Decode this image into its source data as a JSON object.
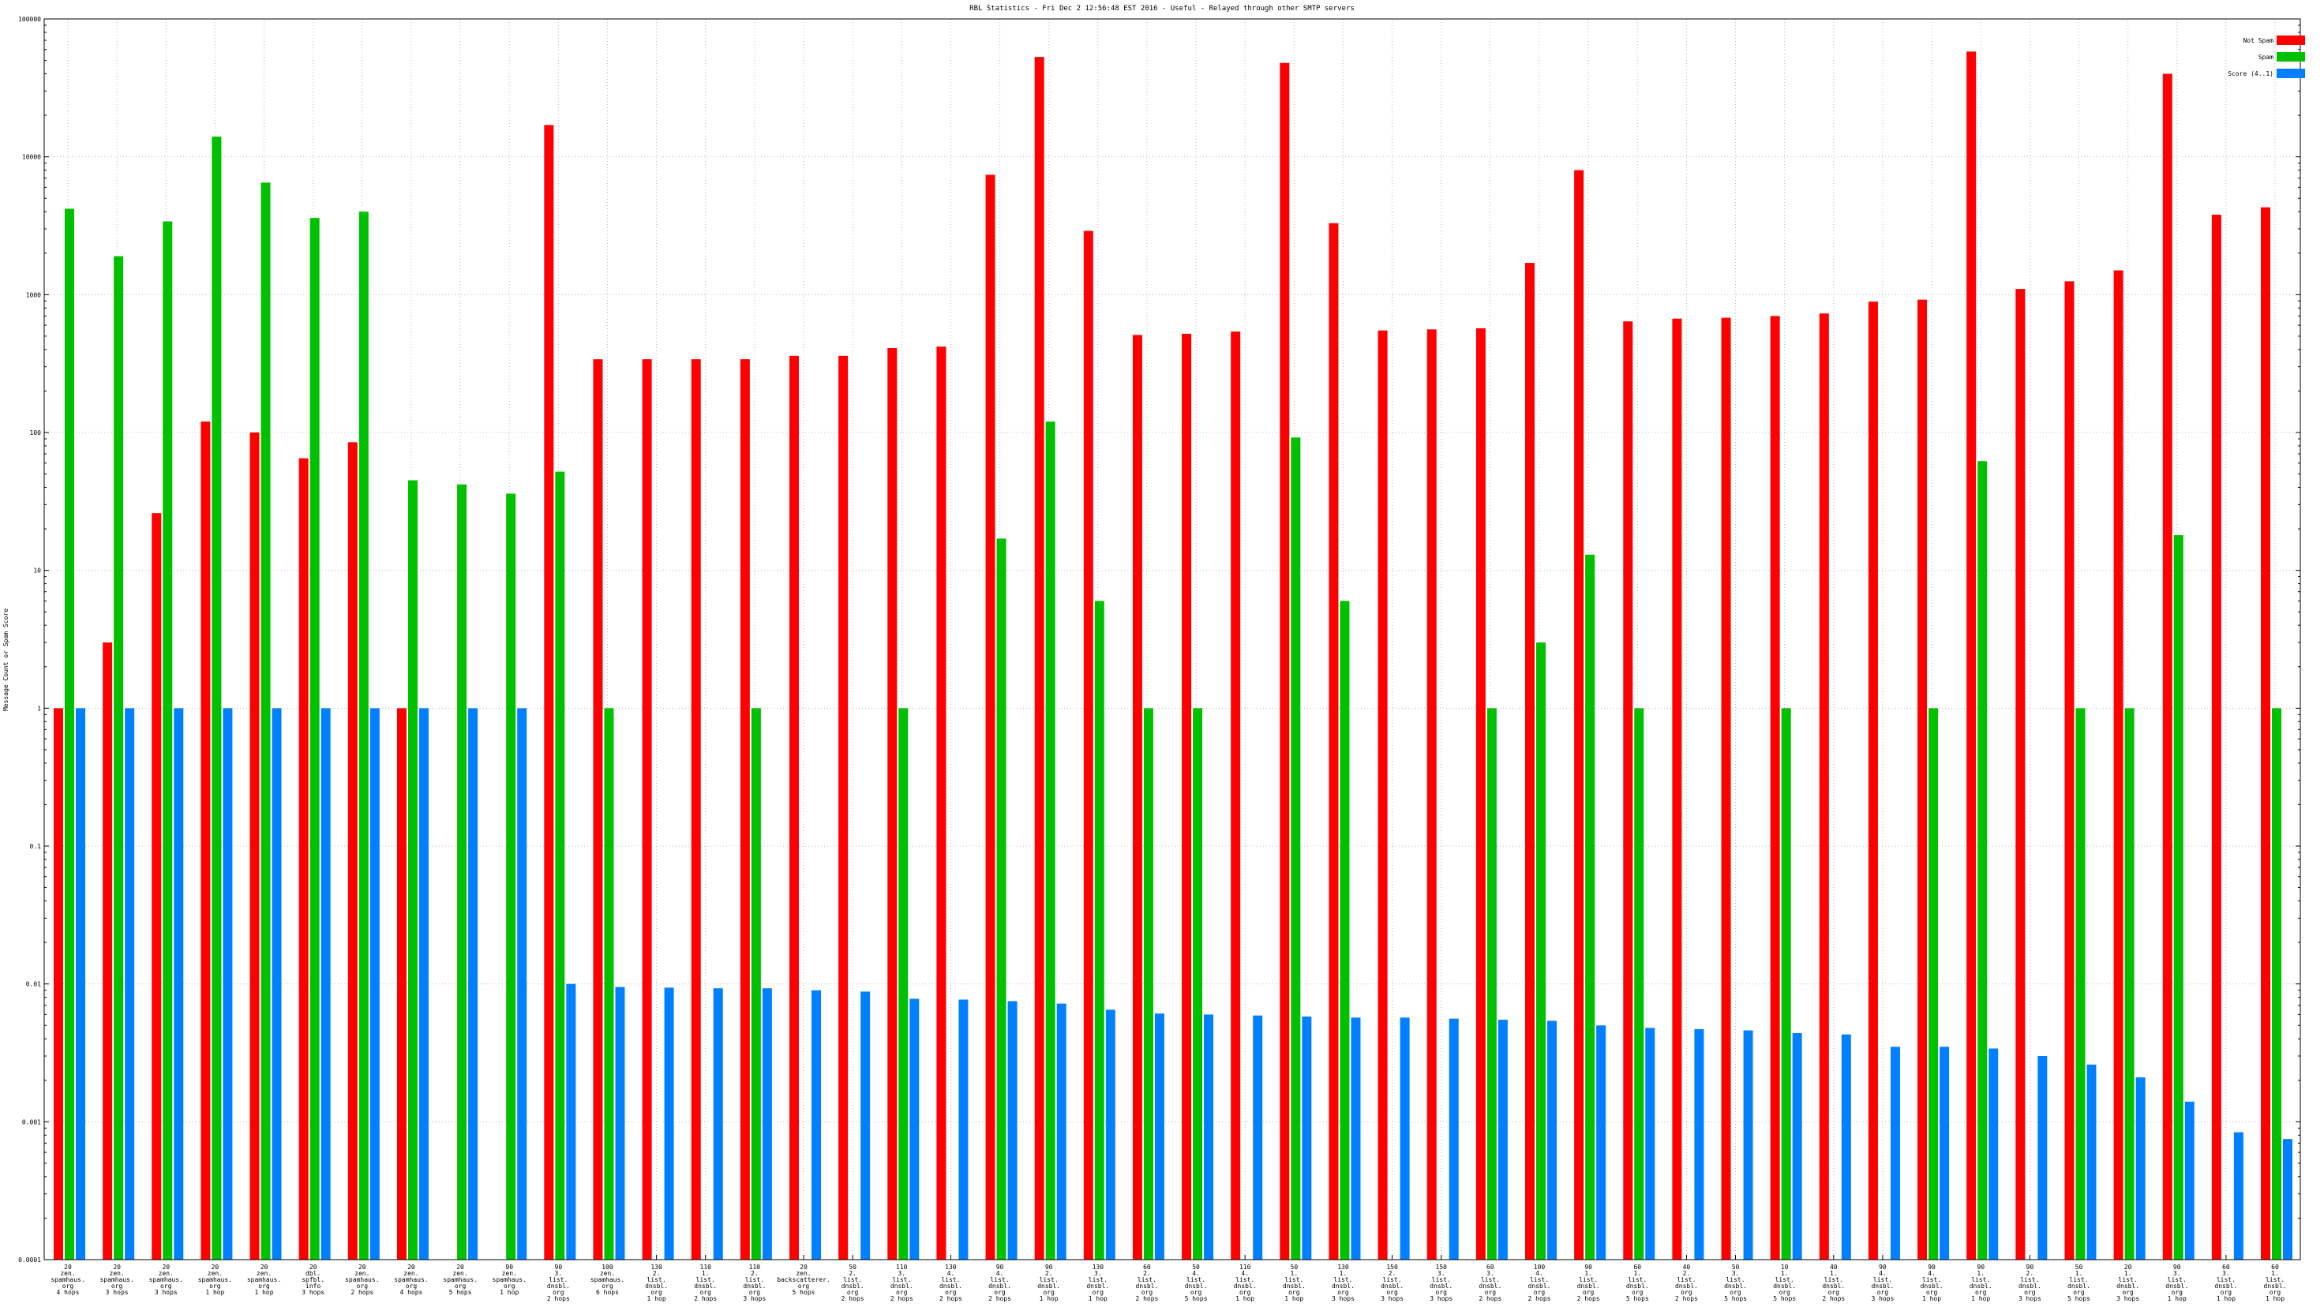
{
  "chart_data": {
    "type": "bar",
    "title": "RBL Statistics - Fri Dec  2 12:56:48 EST 2016 - Useful - Relayed through other SMTP servers",
    "ylabel": "Message Count or Spam Score",
    "xlabel": "",
    "yscale": "log",
    "ylim": [
      0.0001,
      100000
    ],
    "yticks": [
      "0.0001",
      "0.001",
      "0.01",
      "0.1",
      "1",
      "10",
      "100",
      "1000",
      "10000",
      "100000"
    ],
    "grid": true,
    "legend_position": "top-right",
    "colors": {
      "not_spam": "#ff0000",
      "spam": "#00c000",
      "score": "#0080ff"
    },
    "categories": [
      [
        "20",
        "zen.",
        "spamhaus.",
        "org",
        "4 hops"
      ],
      [
        "20",
        "zen.",
        "spamhaus.",
        "org",
        "3 hops"
      ],
      [
        "20",
        "zen.",
        "spamhaus.",
        "org",
        "3 hops"
      ],
      [
        "20",
        "zen.",
        "spamhaus.",
        "org",
        "1 hop"
      ],
      [
        "20",
        "zen.",
        "spamhaus.",
        "org",
        "1 hop"
      ],
      [
        "20",
        "dbl.",
        "spfbl.",
        "info",
        "3 hops"
      ],
      [
        "20",
        "zen.",
        "spamhaus.",
        "org",
        "2 hops"
      ],
      [
        "20",
        "zen.",
        "spamhaus.",
        "org",
        "4 hops"
      ],
      [
        "20",
        "zen.",
        "spamhaus.",
        "org",
        "5 hops"
      ],
      [
        "90",
        "zen.",
        "spamhaus.",
        "org",
        "1 hop"
      ],
      [
        "90",
        "3.",
        "list.",
        "dnsbl.",
        "org",
        "2 hops"
      ],
      [
        "100",
        "zen.",
        "spamhaus.",
        "org",
        "6 hops"
      ],
      [
        "130",
        "2.",
        "list.",
        "dnsbl.",
        "org",
        "1 hop"
      ],
      [
        "110",
        "1.",
        "list.",
        "dnsbl.",
        "org",
        "2 hops"
      ],
      [
        "110",
        "2.",
        "list.",
        "dnsbl.",
        "org",
        "3 hops"
      ],
      [
        "20",
        "zen.",
        "backscatterer.",
        "org",
        "5 hops"
      ],
      [
        "50",
        "2.",
        "list.",
        "dnsbl.",
        "org",
        "2 hops"
      ],
      [
        "110",
        "3.",
        "list.",
        "dnsbl.",
        "org",
        "2 hops"
      ],
      [
        "130",
        "4.",
        "list.",
        "dnsbl.",
        "org",
        "2 hops"
      ],
      [
        "90",
        "4.",
        "list.",
        "dnsbl.",
        "org",
        "2 hops"
      ],
      [
        "90",
        "2.",
        "list.",
        "dnsbl.",
        "org",
        "1 hop"
      ],
      [
        "130",
        "3.",
        "list.",
        "dnsbl.",
        "org",
        "1 hop"
      ],
      [
        "60",
        "2.",
        "list.",
        "dnsbl.",
        "org",
        "2 hops"
      ],
      [
        "50",
        "4.",
        "list.",
        "dnsbl.",
        "org",
        "5 hops"
      ],
      [
        "110",
        "4.",
        "list.",
        "dnsbl.",
        "org",
        "1 hop"
      ],
      [
        "50",
        "1.",
        "list.",
        "dnsbl.",
        "org",
        "1 hop"
      ],
      [
        "130",
        "1.",
        "list.",
        "dnsbl.",
        "org",
        "3 hops"
      ],
      [
        "150",
        "2.",
        "list.",
        "dnsbl.",
        "org",
        "3 hops"
      ],
      [
        "150",
        "3.",
        "list.",
        "dnsbl.",
        "org",
        "3 hops"
      ],
      [
        "60",
        "3.",
        "list.",
        "dnsbl.",
        "org",
        "2 hops"
      ],
      [
        "100",
        "4.",
        "list.",
        "dnsbl.",
        "org",
        "2 hops"
      ],
      [
        "90",
        "1.",
        "list.",
        "dnsbl.",
        "org",
        "2 hops"
      ],
      [
        "60",
        "1.",
        "list.",
        "dnsbl.",
        "org",
        "5 hops"
      ],
      [
        "40",
        "2.",
        "list.",
        "dnsbl.",
        "org",
        "2 hops"
      ],
      [
        "50",
        "3.",
        "list.",
        "dnsbl.",
        "org",
        "5 hops"
      ],
      [
        "10",
        "1.",
        "list.",
        "dnsbl.",
        "org",
        "5 hops"
      ],
      [
        "40",
        "1.",
        "list.",
        "dnsbl.",
        "org",
        "2 hops"
      ],
      [
        "90",
        "4.",
        "list.",
        "dnsbl.",
        "org",
        "3 hops"
      ],
      [
        "90",
        "4.",
        "list.",
        "dnsbl.",
        "org",
        "1 hop"
      ],
      [
        "90",
        "1.",
        "list.",
        "dnsbl.",
        "org",
        "1 hop"
      ],
      [
        "90",
        "2.",
        "list.",
        "dnsbl.",
        "org",
        "3 hops"
      ],
      [
        "50",
        "1.",
        "list.",
        "dnsbl.",
        "org",
        "5 hops"
      ],
      [
        "20",
        "1.",
        "list.",
        "dnsbl.",
        "org",
        "3 hops"
      ],
      [
        "90",
        "3.",
        "list.",
        "dnsbl.",
        "org",
        "1 hop"
      ],
      [
        "60",
        "3.",
        "list.",
        "dnsbl.",
        "org",
        "1 hop"
      ],
      [
        "60",
        "1.",
        "list.",
        "dnsbl.",
        "org",
        "1 hop"
      ]
    ],
    "series": [
      {
        "name": "Not Spam",
        "values": [
          1,
          3,
          26,
          120,
          100,
          65,
          85,
          1,
          null,
          null,
          17000,
          340,
          340,
          340,
          340,
          360,
          360,
          410,
          420,
          7400,
          53000,
          2900,
          510,
          520,
          540,
          48000,
          3300,
          550,
          560,
          570,
          1700,
          8000,
          640,
          670,
          680,
          700,
          730,
          890,
          920,
          58000,
          1100,
          1250,
          1500,
          40000,
          3800,
          4300
        ]
      },
      {
        "name": "Spam",
        "values": [
          4200,
          1900,
          3400,
          14000,
          6500,
          3600,
          4000,
          45,
          42,
          36,
          52,
          1,
          null,
          null,
          1,
          null,
          null,
          1,
          null,
          17,
          120,
          6,
          1,
          1,
          null,
          92,
          6,
          null,
          null,
          1,
          3,
          13,
          1,
          null,
          null,
          1,
          null,
          null,
          1,
          62,
          null,
          1,
          1,
          18,
          null,
          1
        ]
      },
      {
        "name": "Score (4..1)",
        "values": [
          1,
          1,
          1,
          1,
          1,
          1,
          1,
          1,
          1,
          1,
          0.01,
          0.0095,
          0.0094,
          0.0093,
          0.0093,
          0.009,
          0.0088,
          0.0078,
          0.0077,
          0.0075,
          0.0072,
          0.0065,
          0.0061,
          0.006,
          0.0059,
          0.0058,
          0.0057,
          0.0057,
          0.0056,
          0.0055,
          0.0054,
          0.005,
          0.0048,
          0.0047,
          0.0046,
          0.0044,
          0.0043,
          0.0035,
          0.0035,
          0.0034,
          0.003,
          0.0026,
          0.0021,
          0.0014,
          0.00084,
          0.00075
        ]
      }
    ]
  }
}
